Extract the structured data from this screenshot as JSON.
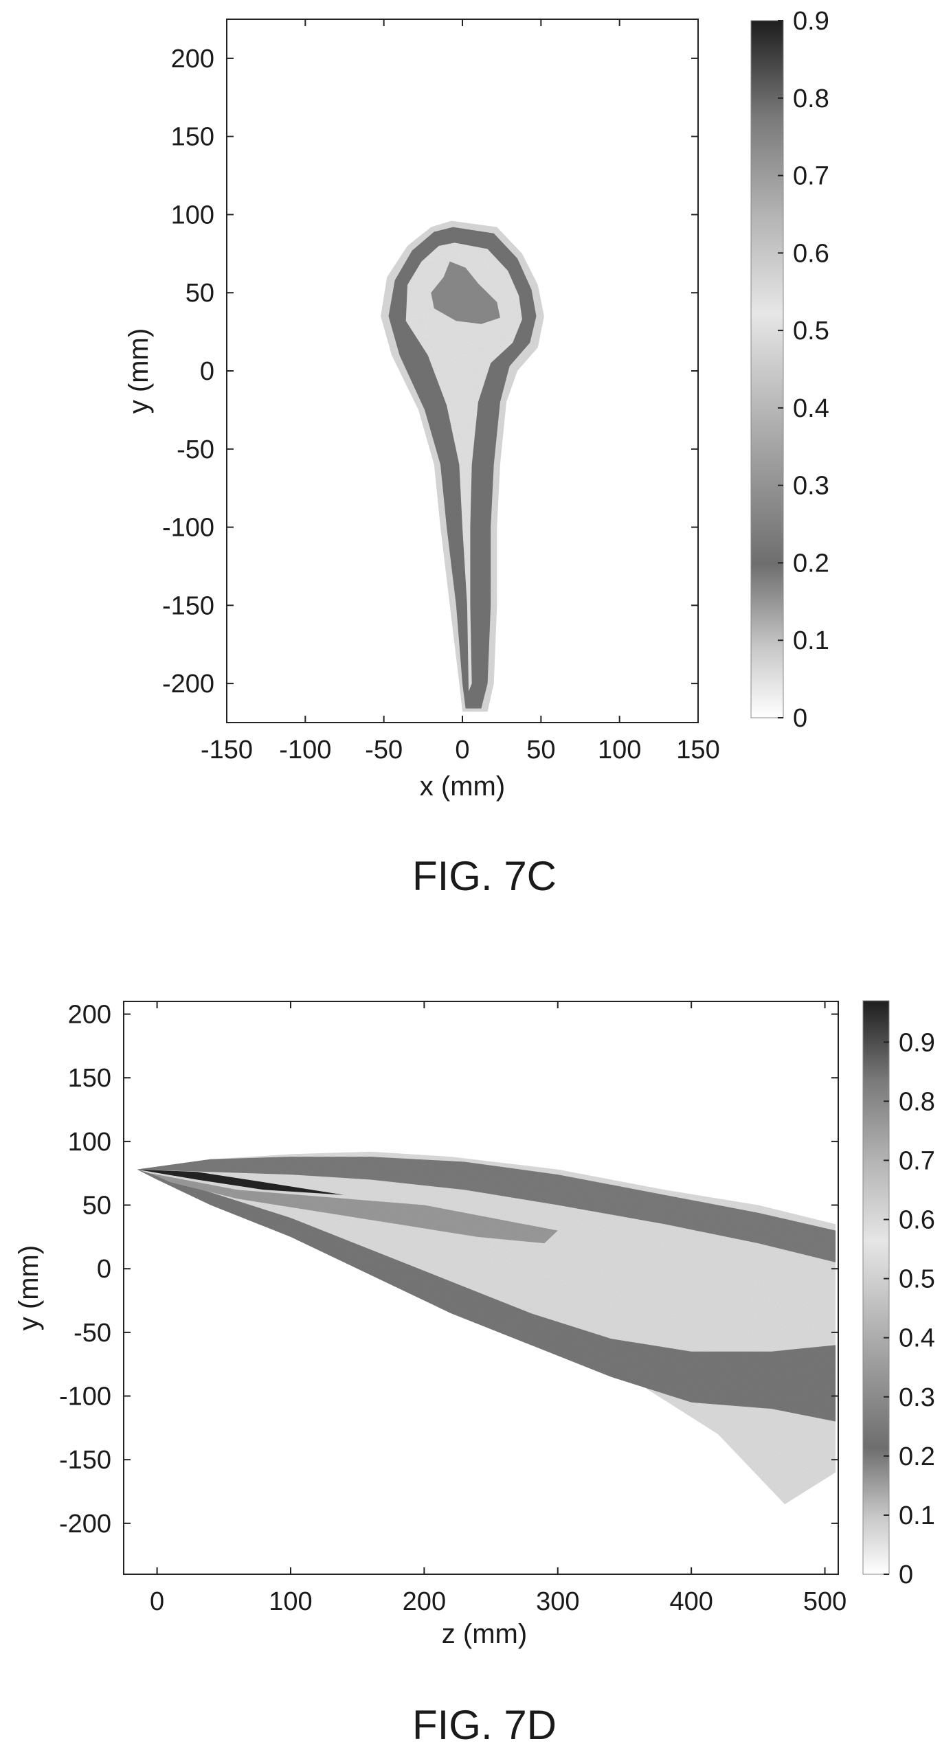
{
  "chart_data": [
    {
      "type": "heatmap",
      "caption": "FIG. 7C",
      "xlabel": "x (mm)",
      "ylabel": "y (mm)",
      "xlim": [
        -150,
        150
      ],
      "ylim": [
        -225,
        225
      ],
      "xticks": [
        -150,
        -100,
        -50,
        0,
        50,
        100,
        150
      ],
      "yticks": [
        -200,
        -150,
        -100,
        -50,
        0,
        50,
        100,
        150,
        200
      ],
      "colorbar": {
        "min": 0,
        "max": 0.9,
        "ticks": [
          0,
          0.1,
          0.2,
          0.3,
          0.4,
          0.5,
          0.6,
          0.7,
          0.8,
          0.9
        ]
      },
      "colormap": "grayscale",
      "colors": {
        "low": "#ffffff",
        "high": "#1a1a1a"
      }
    },
    {
      "type": "heatmap",
      "caption": "FIG. 7D",
      "xlabel": "z (mm)",
      "ylabel": "y (mm)",
      "xlim": [
        -25,
        510
      ],
      "ylim": [
        -240,
        210
      ],
      "xticks": [
        0,
        100,
        200,
        300,
        400,
        500
      ],
      "yticks": [
        -200,
        -150,
        -100,
        -50,
        0,
        50,
        100,
        150,
        200
      ],
      "colorbar": {
        "min": 0,
        "max": 0.97,
        "ticks": [
          0,
          0.1,
          0.2,
          0.3,
          0.4,
          0.5,
          0.6,
          0.7,
          0.8,
          0.9
        ]
      },
      "colormap": "grayscale",
      "colors": {
        "low": "#ffffff",
        "high": "#1a1a1a"
      }
    }
  ]
}
